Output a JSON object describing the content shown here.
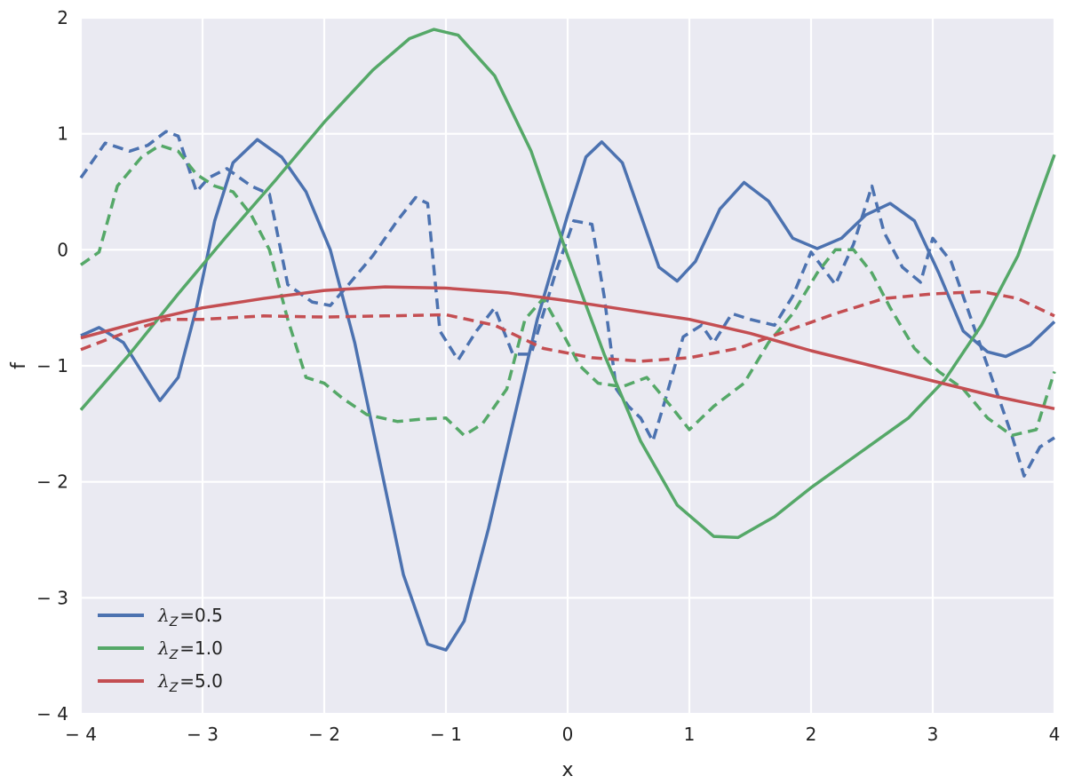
{
  "chart_data": {
    "type": "line",
    "xlabel": "x",
    "ylabel": "f",
    "xlim": [
      -4,
      4
    ],
    "ylim": [
      -4,
      2
    ],
    "x_ticks": [
      -4,
      -3,
      -2,
      -1,
      0,
      1,
      2,
      3,
      4
    ],
    "y_ticks": [
      -4,
      -3,
      -2,
      -1,
      0,
      1,
      2
    ],
    "x_tick_labels": [
      "− 4",
      "− 3",
      "− 2",
      "− 1",
      "0",
      "1",
      "2",
      "3",
      "4"
    ],
    "y_tick_labels": [
      "− 4",
      "− 3",
      "− 2",
      "− 1",
      "0",
      "1",
      "2"
    ],
    "grid": true,
    "legend_position": "bottom-left",
    "legend": [
      {
        "symbol": "λ",
        "subscript": "Z",
        "value": "=0.5",
        "color": "#4C72B0"
      },
      {
        "symbol": "λ",
        "subscript": "Z",
        "value": "=1.0",
        "color": "#55A868"
      },
      {
        "symbol": "λ",
        "subscript": "Z",
        "value": "=5.0",
        "color": "#C44E52"
      }
    ],
    "colors": {
      "background": "#EAEAF2",
      "grid": "#FFFFFF",
      "blue": "#4C72B0",
      "green": "#55A868",
      "red": "#C44E52"
    },
    "series": [
      {
        "color": "#4C72B0",
        "style": "solid",
        "points": [
          [
            -4.0,
            -0.74
          ],
          [
            -3.85,
            -0.67
          ],
          [
            -3.65,
            -0.8
          ],
          [
            -3.5,
            -1.05
          ],
          [
            -3.35,
            -1.3
          ],
          [
            -3.2,
            -1.1
          ],
          [
            -3.05,
            -0.5
          ],
          [
            -2.9,
            0.25
          ],
          [
            -2.75,
            0.75
          ],
          [
            -2.55,
            0.95
          ],
          [
            -2.35,
            0.8
          ],
          [
            -2.15,
            0.5
          ],
          [
            -1.95,
            0.0
          ],
          [
            -1.75,
            -0.8
          ],
          [
            -1.55,
            -1.8
          ],
          [
            -1.35,
            -2.8
          ],
          [
            -1.15,
            -3.4
          ],
          [
            -1.0,
            -3.45
          ],
          [
            -0.85,
            -3.2
          ],
          [
            -0.65,
            -2.4
          ],
          [
            -0.45,
            -1.5
          ],
          [
            -0.25,
            -0.6
          ],
          [
            0.0,
            0.3
          ],
          [
            0.15,
            0.8
          ],
          [
            0.28,
            0.93
          ],
          [
            0.45,
            0.75
          ],
          [
            0.6,
            0.3
          ],
          [
            0.75,
            -0.15
          ],
          [
            0.9,
            -0.27
          ],
          [
            1.05,
            -0.1
          ],
          [
            1.25,
            0.35
          ],
          [
            1.45,
            0.58
          ],
          [
            1.65,
            0.42
          ],
          [
            1.85,
            0.1
          ],
          [
            2.05,
            0.01
          ],
          [
            2.25,
            0.1
          ],
          [
            2.45,
            0.3
          ],
          [
            2.65,
            0.4
          ],
          [
            2.85,
            0.25
          ],
          [
            3.05,
            -0.2
          ],
          [
            3.25,
            -0.7
          ],
          [
            3.45,
            -0.88
          ],
          [
            3.6,
            -0.92
          ],
          [
            3.8,
            -0.82
          ],
          [
            4.0,
            -0.62
          ]
        ]
      },
      {
        "color": "#4C72B0",
        "style": "dashed",
        "points": [
          [
            -4.0,
            0.62
          ],
          [
            -3.8,
            0.92
          ],
          [
            -3.6,
            0.85
          ],
          [
            -3.45,
            0.9
          ],
          [
            -3.3,
            1.02
          ],
          [
            -3.2,
            0.98
          ],
          [
            -3.05,
            0.5
          ],
          [
            -2.95,
            0.62
          ],
          [
            -2.8,
            0.7
          ],
          [
            -2.6,
            0.55
          ],
          [
            -2.45,
            0.48
          ],
          [
            -2.3,
            -0.3
          ],
          [
            -2.1,
            -0.45
          ],
          [
            -1.95,
            -0.48
          ],
          [
            -1.8,
            -0.3
          ],
          [
            -1.6,
            -0.05
          ],
          [
            -1.4,
            0.25
          ],
          [
            -1.25,
            0.45
          ],
          [
            -1.15,
            0.4
          ],
          [
            -1.05,
            -0.7
          ],
          [
            -0.9,
            -0.95
          ],
          [
            -0.75,
            -0.7
          ],
          [
            -0.6,
            -0.5
          ],
          [
            -0.45,
            -0.9
          ],
          [
            -0.3,
            -0.9
          ],
          [
            -0.1,
            -0.2
          ],
          [
            0.05,
            0.25
          ],
          [
            0.2,
            0.22
          ],
          [
            0.3,
            -0.4
          ],
          [
            0.4,
            -1.2
          ],
          [
            0.5,
            -1.35
          ],
          [
            0.6,
            -1.45
          ],
          [
            0.7,
            -1.65
          ],
          [
            0.8,
            -1.3
          ],
          [
            0.95,
            -0.75
          ],
          [
            1.1,
            -0.65
          ],
          [
            1.2,
            -0.8
          ],
          [
            1.35,
            -0.55
          ],
          [
            1.5,
            -0.6
          ],
          [
            1.7,
            -0.65
          ],
          [
            1.85,
            -0.4
          ],
          [
            2.0,
            -0.02
          ],
          [
            2.2,
            -0.3
          ],
          [
            2.35,
            0.05
          ],
          [
            2.5,
            0.55
          ],
          [
            2.6,
            0.15
          ],
          [
            2.75,
            -0.15
          ],
          [
            2.9,
            -0.28
          ],
          [
            3.0,
            0.1
          ],
          [
            3.15,
            -0.1
          ],
          [
            3.3,
            -0.55
          ],
          [
            3.5,
            -1.15
          ],
          [
            3.65,
            -1.6
          ],
          [
            3.75,
            -1.95
          ],
          [
            3.88,
            -1.7
          ],
          [
            4.0,
            -1.62
          ]
        ]
      },
      {
        "color": "#55A868",
        "style": "solid",
        "points": [
          [
            -4.0,
            -1.38
          ],
          [
            -3.6,
            -0.9
          ],
          [
            -3.2,
            -0.38
          ],
          [
            -2.8,
            0.12
          ],
          [
            -2.4,
            0.6
          ],
          [
            -2.0,
            1.1
          ],
          [
            -1.6,
            1.55
          ],
          [
            -1.3,
            1.82
          ],
          [
            -1.1,
            1.9
          ],
          [
            -0.9,
            1.85
          ],
          [
            -0.6,
            1.5
          ],
          [
            -0.3,
            0.85
          ],
          [
            0.0,
            -0.05
          ],
          [
            0.3,
            -0.9
          ],
          [
            0.6,
            -1.65
          ],
          [
            0.9,
            -2.2
          ],
          [
            1.2,
            -2.47
          ],
          [
            1.4,
            -2.48
          ],
          [
            1.7,
            -2.3
          ],
          [
            2.0,
            -2.05
          ],
          [
            2.4,
            -1.75
          ],
          [
            2.8,
            -1.45
          ],
          [
            3.1,
            -1.12
          ],
          [
            3.4,
            -0.65
          ],
          [
            3.7,
            -0.05
          ],
          [
            4.0,
            0.82
          ]
        ]
      },
      {
        "color": "#55A868",
        "style": "dashed",
        "points": [
          [
            -4.0,
            -0.13
          ],
          [
            -3.85,
            -0.02
          ],
          [
            -3.7,
            0.55
          ],
          [
            -3.5,
            0.8
          ],
          [
            -3.35,
            0.9
          ],
          [
            -3.2,
            0.85
          ],
          [
            -3.05,
            0.65
          ],
          [
            -2.9,
            0.55
          ],
          [
            -2.75,
            0.5
          ],
          [
            -2.6,
            0.3
          ],
          [
            -2.45,
            0.0
          ],
          [
            -2.3,
            -0.6
          ],
          [
            -2.15,
            -1.1
          ],
          [
            -2.0,
            -1.15
          ],
          [
            -1.85,
            -1.28
          ],
          [
            -1.65,
            -1.42
          ],
          [
            -1.4,
            -1.48
          ],
          [
            -1.2,
            -1.46
          ],
          [
            -1.0,
            -1.45
          ],
          [
            -0.85,
            -1.6
          ],
          [
            -0.7,
            -1.5
          ],
          [
            -0.5,
            -1.2
          ],
          [
            -0.35,
            -0.6
          ],
          [
            -0.2,
            -0.42
          ],
          [
            -0.05,
            -0.7
          ],
          [
            0.1,
            -1.0
          ],
          [
            0.25,
            -1.15
          ],
          [
            0.45,
            -1.18
          ],
          [
            0.65,
            -1.1
          ],
          [
            0.85,
            -1.35
          ],
          [
            1.0,
            -1.55
          ],
          [
            1.2,
            -1.35
          ],
          [
            1.45,
            -1.15
          ],
          [
            1.65,
            -0.8
          ],
          [
            1.85,
            -0.55
          ],
          [
            2.05,
            -0.2
          ],
          [
            2.2,
            0.0
          ],
          [
            2.35,
            0.0
          ],
          [
            2.5,
            -0.2
          ],
          [
            2.65,
            -0.5
          ],
          [
            2.85,
            -0.85
          ],
          [
            3.05,
            -1.05
          ],
          [
            3.25,
            -1.2
          ],
          [
            3.45,
            -1.45
          ],
          [
            3.65,
            -1.6
          ],
          [
            3.85,
            -1.55
          ],
          [
            4.0,
            -1.05
          ]
        ]
      },
      {
        "color": "#C44E52",
        "style": "solid",
        "points": [
          [
            -4.0,
            -0.76
          ],
          [
            -3.5,
            -0.62
          ],
          [
            -3.0,
            -0.5
          ],
          [
            -2.5,
            -0.42
          ],
          [
            -2.0,
            -0.35
          ],
          [
            -1.5,
            -0.32
          ],
          [
            -1.0,
            -0.33
          ],
          [
            -0.5,
            -0.37
          ],
          [
            0.0,
            -0.44
          ],
          [
            0.5,
            -0.52
          ],
          [
            1.0,
            -0.6
          ],
          [
            1.5,
            -0.72
          ],
          [
            2.0,
            -0.87
          ],
          [
            2.5,
            -1.0
          ],
          [
            3.0,
            -1.13
          ],
          [
            3.5,
            -1.26
          ],
          [
            4.0,
            -1.37
          ]
        ]
      },
      {
        "color": "#C44E52",
        "style": "dashed",
        "points": [
          [
            -4.0,
            -0.86
          ],
          [
            -3.6,
            -0.7
          ],
          [
            -3.3,
            -0.6
          ],
          [
            -3.0,
            -0.6
          ],
          [
            -2.5,
            -0.57
          ],
          [
            -2.0,
            -0.58
          ],
          [
            -1.5,
            -0.57
          ],
          [
            -1.0,
            -0.56
          ],
          [
            -0.6,
            -0.65
          ],
          [
            -0.2,
            -0.85
          ],
          [
            0.2,
            -0.93
          ],
          [
            0.6,
            -0.96
          ],
          [
            1.0,
            -0.93
          ],
          [
            1.4,
            -0.85
          ],
          [
            1.8,
            -0.7
          ],
          [
            2.2,
            -0.55
          ],
          [
            2.6,
            -0.42
          ],
          [
            3.0,
            -0.38
          ],
          [
            3.4,
            -0.36
          ],
          [
            3.7,
            -0.42
          ],
          [
            4.0,
            -0.57
          ]
        ]
      }
    ]
  }
}
